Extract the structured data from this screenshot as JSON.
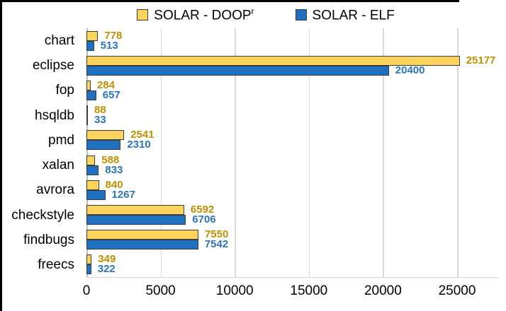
{
  "legend": {
    "items": [
      {
        "label": "SOLAR - DOOP",
        "sup": "r",
        "swatch_color": "#FCD55F"
      },
      {
        "label": "SOLAR - ELF",
        "sup": "",
        "swatch_color": "#1F70C1"
      }
    ]
  },
  "chart_data": {
    "type": "bar",
    "orientation": "horizontal",
    "title": "",
    "xlabel": "",
    "ylabel": "",
    "categories": [
      "chart",
      "eclipse",
      "fop",
      "hsqldb",
      "pmd",
      "xalan",
      "avrora",
      "checkstyle",
      "findbugs",
      "freecs"
    ],
    "series": [
      {
        "name": "SOLAR - DOOP^r",
        "bar_color": "#FCD55F",
        "label_color": "#BF9000",
        "values": [
          778,
          25177,
          284,
          88,
          2541,
          588,
          840,
          6592,
          7550,
          349
        ]
      },
      {
        "name": "SOLAR - ELF",
        "bar_color": "#1F70C1",
        "label_color": "#2E75B6",
        "values": [
          513,
          20400,
          657,
          33,
          2310,
          833,
          1267,
          6706,
          7542,
          322
        ]
      }
    ],
    "x_ticks": [
      0,
      5000,
      10000,
      15000,
      20000,
      25000
    ],
    "xlim": [
      0,
      27800
    ],
    "grid": true,
    "legend_position": "top",
    "bar_outline_color": "#3B3B3B",
    "gridline_color": "#D9D9D9"
  }
}
